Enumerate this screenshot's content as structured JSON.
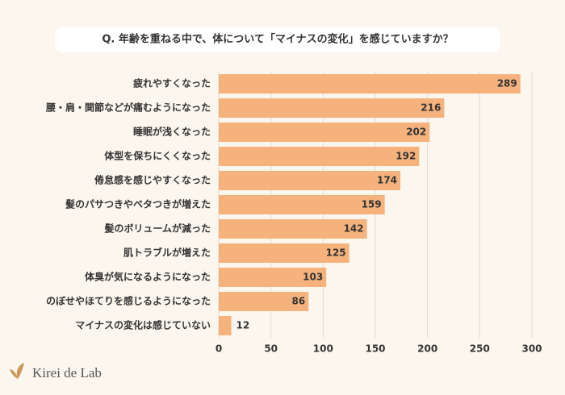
{
  "chart_data": {
    "type": "bar",
    "orientation": "horizontal",
    "title": "Q. 年齢を重ねる中で、体について「マイナスの変化」を感じていますか？",
    "categories": [
      "疲れやすくなった",
      "腰・肩・関節などが痛むようになった",
      "睡眠が浅くなった",
      "体型を保ちにくくなった",
      "倦怠感を感じやすくなった",
      "髪のパサつきやベタつきが増えた",
      "髪のボリュームが減った",
      "肌トラブルが増えた",
      "体臭が気になるようになった",
      "のぼせやほてりを感じるようになった",
      "マイナスの変化は感じていない"
    ],
    "values": [
      289,
      216,
      202,
      192,
      174,
      159,
      142,
      125,
      103,
      86,
      12
    ],
    "color": "#f6b27c",
    "xlim": [
      0,
      300
    ],
    "xticks": [
      0,
      50,
      100,
      150,
      200,
      250,
      300
    ],
    "grid": true
  },
  "brand": "Kirei de Lab"
}
